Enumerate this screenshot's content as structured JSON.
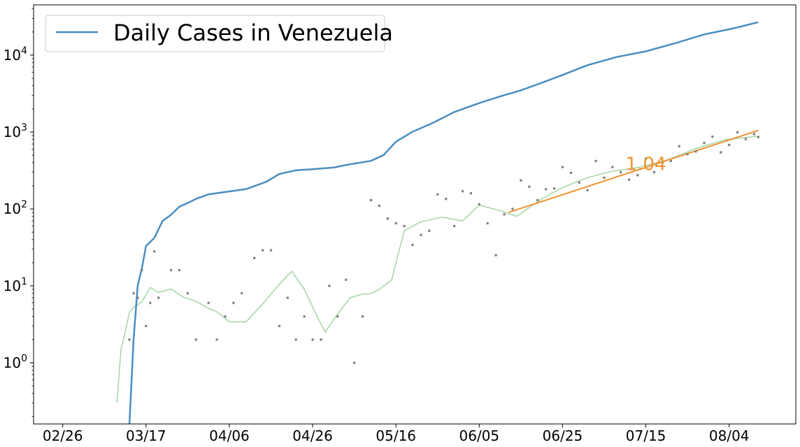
{
  "chart_data": {
    "type": "line",
    "title": "",
    "xlabel": "",
    "ylabel": "",
    "yscale": "log",
    "ylim": [
      0.16,
      45000
    ],
    "xlim": [
      "2020-02-19",
      "2020-08-20"
    ],
    "grid": false,
    "legend": {
      "position": "top-left",
      "entries": [
        "Daily Cases in Venezuela"
      ]
    },
    "x_ticks": [
      "02/26",
      "03/17",
      "04/06",
      "04/26",
      "05/16",
      "06/05",
      "06/25",
      "07/15",
      "08/04"
    ],
    "y_ticks": [
      {
        "value": 1,
        "base": "10",
        "exp": "0"
      },
      {
        "value": 10,
        "base": "10",
        "exp": "1"
      },
      {
        "value": 100,
        "base": "10",
        "exp": "2"
      },
      {
        "value": 1000,
        "base": "10",
        "exp": "3"
      },
      {
        "value": 10000,
        "base": "10",
        "exp": "4"
      }
    ],
    "colors": {
      "cumulative": "#4a8ec0",
      "daily_points": "#7f7f7f",
      "smoothed": "#a8d8a8",
      "fit": "#f0922e"
    },
    "series": [
      {
        "name": "Daily Cases in Venezuela",
        "kind": "cumulative",
        "x": [
          "2020-03-13",
          "2020-03-14",
          "2020-03-15",
          "2020-03-16",
          "2020-03-17",
          "2020-03-19",
          "2020-03-21",
          "2020-03-23",
          "2020-03-25",
          "2020-03-27",
          "2020-03-29",
          "2020-04-01",
          "2020-04-05",
          "2020-04-10",
          "2020-04-15",
          "2020-04-18",
          "2020-04-22",
          "2020-04-26",
          "2020-05-01",
          "2020-05-05",
          "2020-05-10",
          "2020-05-13",
          "2020-05-16",
          "2020-05-20",
          "2020-05-25",
          "2020-05-30",
          "2020-06-05",
          "2020-06-10",
          "2020-06-15",
          "2020-06-20",
          "2020-06-25",
          "2020-07-01",
          "2020-07-08",
          "2020-07-15",
          "2020-07-22",
          "2020-07-29",
          "2020-08-05",
          "2020-08-11"
        ],
        "y": [
          0.1,
          2,
          10,
          17,
          33,
          42,
          70,
          84,
          107,
          119,
          135,
          155,
          166,
          181,
          227,
          285,
          318,
          329,
          345,
          381,
          422,
          500,
          749,
          1010,
          1325,
          1819,
          2377,
          2904,
          3484,
          4366,
          5530,
          7411,
          9465,
          11191,
          14263,
          18574,
          22299,
          26800
        ]
      },
      {
        "name": "",
        "kind": "smoothed",
        "x": [
          "2020-03-10",
          "2020-03-11",
          "2020-03-12",
          "2020-03-13",
          "2020-03-14",
          "2020-03-16",
          "2020-03-18",
          "2020-03-20",
          "2020-03-23",
          "2020-03-26",
          "2020-03-29",
          "2020-04-01",
          "2020-04-03",
          "2020-04-06",
          "2020-04-10",
          "2020-04-14",
          "2020-04-18",
          "2020-04-21",
          "2020-04-24",
          "2020-04-27",
          "2020-04-29",
          "2020-05-02",
          "2020-05-05",
          "2020-05-08",
          "2020-05-10",
          "2020-05-12",
          "2020-05-15",
          "2020-05-18",
          "2020-05-22",
          "2020-05-27",
          "2020-06-01",
          "2020-06-05",
          "2020-06-10",
          "2020-06-14",
          "2020-06-20",
          "2020-06-25",
          "2020-07-01",
          "2020-07-07",
          "2020-07-13",
          "2020-07-20",
          "2020-07-27",
          "2020-08-03",
          "2020-08-11"
        ],
        "y": [
          0.3,
          1.5,
          2.5,
          4.5,
          5.2,
          6.2,
          9.5,
          8.2,
          9.1,
          7.1,
          6.3,
          5.1,
          4.6,
          3.4,
          3.4,
          5.8,
          10.5,
          15.5,
          9.0,
          4.1,
          2.5,
          4.3,
          7.0,
          7.8,
          7.9,
          9.0,
          12.0,
          52,
          68,
          78,
          70,
          112,
          95,
          80,
          135,
          190,
          255,
          310,
          345,
          430,
          610,
          795,
          880
        ]
      },
      {
        "name": "",
        "kind": "fit",
        "x": [
          "2020-06-12",
          "2020-08-11"
        ],
        "y": [
          90,
          1050
        ]
      }
    ],
    "points": {
      "name": "",
      "x": [
        "2020-03-13",
        "2020-03-14",
        "2020-03-15",
        "2020-03-16",
        "2020-03-17",
        "2020-03-18",
        "2020-03-19",
        "2020-03-20",
        "2020-03-23",
        "2020-03-25",
        "2020-03-27",
        "2020-03-29",
        "2020-04-01",
        "2020-04-03",
        "2020-04-05",
        "2020-04-07",
        "2020-04-09",
        "2020-04-12",
        "2020-04-14",
        "2020-04-16",
        "2020-04-18",
        "2020-04-20",
        "2020-04-22",
        "2020-04-24",
        "2020-04-26",
        "2020-04-28",
        "2020-04-30",
        "2020-05-02",
        "2020-05-04",
        "2020-05-06",
        "2020-05-08",
        "2020-05-10",
        "2020-05-12",
        "2020-05-14",
        "2020-05-16",
        "2020-05-18",
        "2020-05-20",
        "2020-05-22",
        "2020-05-24",
        "2020-05-26",
        "2020-05-28",
        "2020-05-30",
        "2020-06-01",
        "2020-06-03",
        "2020-06-05",
        "2020-06-07",
        "2020-06-09",
        "2020-06-11",
        "2020-06-13",
        "2020-06-15",
        "2020-06-17",
        "2020-06-19",
        "2020-06-21",
        "2020-06-23",
        "2020-06-25",
        "2020-06-27",
        "2020-06-29",
        "2020-07-01",
        "2020-07-03",
        "2020-07-05",
        "2020-07-07",
        "2020-07-09",
        "2020-07-11",
        "2020-07-13",
        "2020-07-15",
        "2020-07-17",
        "2020-07-19",
        "2020-07-21",
        "2020-07-23",
        "2020-07-25",
        "2020-07-27",
        "2020-07-29",
        "2020-07-31",
        "2020-08-02",
        "2020-08-04",
        "2020-08-06",
        "2020-08-08",
        "2020-08-10",
        "2020-08-11"
      ],
      "y": [
        2,
        8,
        7,
        16,
        3,
        6,
        28,
        7,
        16,
        16,
        8,
        2,
        6,
        2,
        4,
        6,
        8,
        23,
        29,
        29,
        3,
        7,
        2,
        4,
        2,
        2,
        10,
        4,
        12,
        1,
        4,
        130,
        110,
        75,
        65,
        60,
        34,
        46,
        52,
        155,
        135,
        60,
        170,
        160,
        115,
        65,
        25,
        85,
        100,
        235,
        195,
        130,
        180,
        185,
        350,
        295,
        220,
        175,
        420,
        255,
        350,
        300,
        240,
        275,
        450,
        300,
        400,
        420,
        655,
        515,
        560,
        720,
        870,
        545,
        680,
        990,
        810,
        940,
        860
      ]
    },
    "annotations": [
      {
        "text": "1.04",
        "x": "2020-07-15",
        "y": 385
      }
    ]
  }
}
